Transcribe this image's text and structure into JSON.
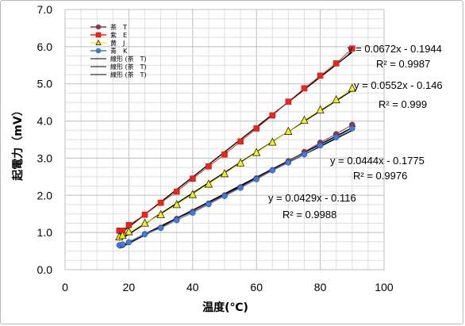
{
  "chart_data": {
    "type": "scatter",
    "xlabel": "温度(℃)",
    "ylabel": "起電力（mV）",
    "xlim": [
      0,
      100
    ],
    "ylim": [
      0,
      7
    ],
    "x_ticks": [
      "0",
      "20",
      "40",
      "60",
      "80",
      "100"
    ],
    "y_ticks": [
      "0.0",
      "1.0",
      "2.0",
      "3.0",
      "4.0",
      "5.0",
      "6.0",
      "7.0"
    ],
    "grid": true,
    "legend_position": "top-left",
    "series": [
      {
        "name": "茶　T",
        "color": "#8b3a52",
        "marker": "circle",
        "x": [
          18,
          20,
          25,
          30,
          35,
          40,
          45,
          50,
          55,
          60,
          65,
          70,
          75,
          80,
          85,
          90
        ],
        "y": [
          0.66,
          0.74,
          0.96,
          1.13,
          1.37,
          1.56,
          1.78,
          2.0,
          2.22,
          2.46,
          2.68,
          2.92,
          3.17,
          3.42,
          3.65,
          3.9
        ]
      },
      {
        "name": "紫　E",
        "color": "#e8261c",
        "marker": "square",
        "x": [
          17,
          18,
          20,
          25,
          30,
          35,
          40,
          45,
          50,
          55,
          60,
          65,
          70,
          75,
          80,
          85,
          90
        ],
        "y": [
          1.05,
          1.05,
          1.2,
          1.48,
          1.8,
          2.1,
          2.45,
          2.78,
          3.1,
          3.45,
          3.8,
          4.15,
          4.52,
          4.88,
          5.22,
          5.55,
          5.95
        ]
      },
      {
        "name": "黄　J",
        "color": "#f4ee1a",
        "marker": "triangle",
        "x": [
          17,
          18,
          20,
          25,
          30,
          35,
          40,
          45,
          50,
          55,
          60,
          65,
          70,
          75,
          80,
          85,
          90
        ],
        "y": [
          0.88,
          0.92,
          1.02,
          1.25,
          1.48,
          1.75,
          2.02,
          2.3,
          2.58,
          2.87,
          3.15,
          3.43,
          3.72,
          4.02,
          4.3,
          4.57,
          4.88
        ]
      },
      {
        "name": "青　K",
        "color": "#3a7de8",
        "marker": "circle",
        "x": [
          17,
          18,
          20,
          25,
          30,
          35,
          40,
          45,
          50,
          55,
          60,
          65,
          70,
          75,
          80,
          85,
          90
        ],
        "y": [
          0.66,
          0.68,
          0.74,
          0.95,
          1.12,
          1.33,
          1.53,
          1.76,
          1.98,
          2.2,
          2.43,
          2.67,
          2.88,
          3.1,
          3.34,
          3.56,
          3.8
        ]
      }
    ],
    "trendline_legend": [
      "線形 (茶　T)",
      "線形 (茶　T)",
      "線形 (茶　T)"
    ],
    "trendlines": [
      {
        "series": "紫　E",
        "slope": 0.0672,
        "intercept": -0.1944,
        "x_range": [
          17,
          90
        ],
        "equation": "y = 0.0672x - 0.1944",
        "r2": "R² = 0.9987"
      },
      {
        "series": "黄　J",
        "slope": 0.0552,
        "intercept": -0.146,
        "x_range": [
          17,
          90
        ],
        "equation": "y = 0.0552x - 0.146",
        "r2": "R² = 0.999"
      },
      {
        "series": "茶　T",
        "slope": 0.0444,
        "intercept": -0.1775,
        "x_range": [
          17,
          91
        ],
        "equation": "y = 0.0444x - 0.1775",
        "r2": "R² = 0.9976"
      },
      {
        "series": "青　K",
        "slope": 0.0429,
        "intercept": -0.116,
        "x_range": [
          17,
          90
        ],
        "equation": "y = 0.0429x - 0.116",
        "r2": "R² = 0.9988"
      }
    ]
  }
}
